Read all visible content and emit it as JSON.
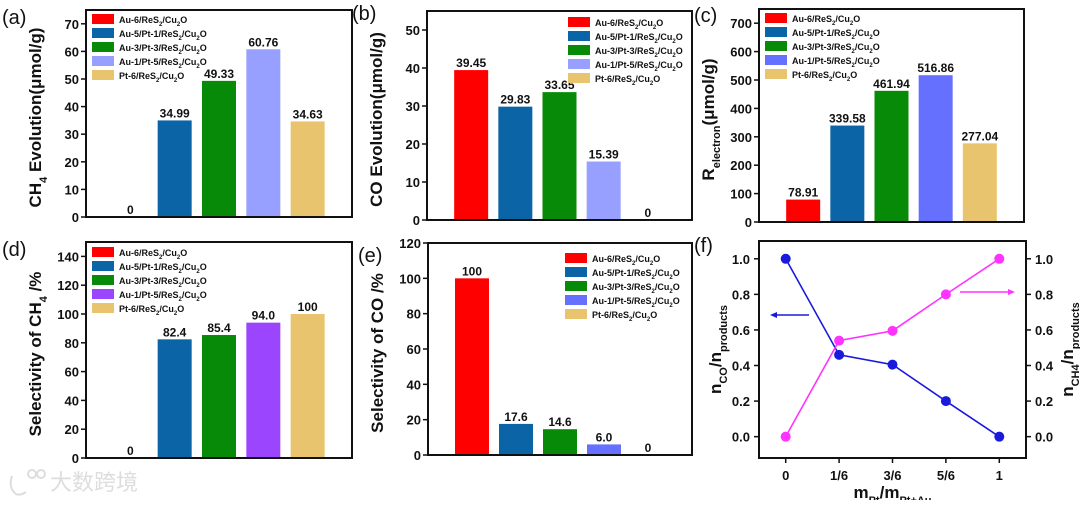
{
  "legend_labels": [
    "Au-6/ReS_{2}/Cu_{2}O",
    "Au-5/Pt-1/ReS_{2}/Cu_{2}O",
    "Au-3/Pt-3/ReS_{2}/Cu_{2}O",
    "Au-1/Pt-5/ReS_{2}/Cu_{2}O",
    "Pt-6/ReS_{2}/Cu_{2}O"
  ],
  "watermark": "大数跨境",
  "chart_data": [
    {
      "id": "a",
      "panel_label": "(a)",
      "type": "bar",
      "ylabel": "CH_{4} Evolution(μmol/g)",
      "ylim": [
        0,
        75
      ],
      "yticks": [
        0,
        10,
        20,
        30,
        40,
        50,
        60,
        70
      ],
      "values": [
        0,
        34.99,
        49.33,
        60.76,
        34.63
      ],
      "value_labels": [
        "0",
        "34.99",
        "49.33",
        "60.76",
        "34.63"
      ],
      "colors": [
        "#ff0000",
        "#0a64a6",
        "#078a07",
        "#98a0ff",
        "#e9c46e"
      ],
      "legend": "top-left"
    },
    {
      "id": "b",
      "panel_label": "(b)",
      "type": "bar",
      "ylabel": "CO Evolution(μmol/g)",
      "ylim": [
        0,
        55
      ],
      "yticks": [
        0,
        10,
        20,
        30,
        40,
        50
      ],
      "values": [
        39.45,
        29.83,
        33.65,
        15.39,
        0
      ],
      "value_labels": [
        "39.45",
        "29.83",
        "33.65",
        "15.39",
        "0"
      ],
      "colors": [
        "#ff0000",
        "#0a64a6",
        "#078a07",
        "#98a0ff",
        "#e9c46e"
      ],
      "legend": "top-right"
    },
    {
      "id": "c",
      "panel_label": "(c)",
      "type": "bar",
      "ylabel": "R_{electron}(μmol/g)",
      "ylim": [
        0,
        750
      ],
      "yticks": [
        0,
        100,
        200,
        300,
        400,
        500,
        600,
        700
      ],
      "values": [
        78.91,
        339.58,
        461.94,
        516.86,
        277.04
      ],
      "value_labels": [
        "78.91",
        "339.58",
        "461.94",
        "516.86",
        "277.04"
      ],
      "colors": [
        "#ff0000",
        "#0a64a6",
        "#078a07",
        "#6670ff",
        "#e9c46e"
      ],
      "legend": "top-left"
    },
    {
      "id": "d",
      "panel_label": "(d)",
      "type": "bar",
      "ylabel": "Selectivity of CH_{4} /%",
      "ylim": [
        0,
        150
      ],
      "yticks": [
        0,
        20,
        40,
        60,
        80,
        100,
        120,
        140
      ],
      "values": [
        0,
        82.4,
        85.4,
        94.0,
        100
      ],
      "value_labels": [
        "0",
        "82.4",
        "85.4",
        "94.0",
        "100"
      ],
      "colors": [
        "#ff0000",
        "#0a64a6",
        "#078a07",
        "#9b45ff",
        "#e9c46e"
      ],
      "legend": "top-left"
    },
    {
      "id": "e",
      "panel_label": "(e)",
      "type": "bar",
      "ylabel": "Selectivity of CO /%",
      "ylim": [
        0,
        120
      ],
      "yticks": [
        0,
        20,
        40,
        60,
        80,
        100,
        120
      ],
      "values": [
        100,
        17.6,
        14.6,
        6.0,
        0
      ],
      "value_labels": [
        "100",
        "17.6",
        "14.6",
        "6.0",
        "0"
      ],
      "colors": [
        "#ff0000",
        "#0a64a6",
        "#078a07",
        "#6670ff",
        "#e9c46e"
      ],
      "legend": "top-right"
    },
    {
      "id": "f",
      "panel_label": "(f)",
      "type": "line",
      "xlabel": "m_{Pt}/m_{Pt+Au}",
      "x": [
        "0",
        "1/6",
        "3/6",
        "5/6",
        "1"
      ],
      "ylim": [
        -0.12,
        1.1
      ],
      "yticks": [
        "0.0",
        "0.2",
        "0.4",
        "0.6",
        "0.8",
        "1.0"
      ],
      "ylabel_left": "n_{CO}/n_{products}",
      "ylabel_right": "n_{CH4}/n_{products}",
      "series": [
        {
          "name": "n_CO/n_products",
          "axis": "left",
          "color": "#1a1adc",
          "values": [
            1.0,
            0.46,
            0.405,
            0.2,
            0.0
          ]
        },
        {
          "name": "n_CH4/n_products",
          "axis": "right",
          "color": "#ff33ff",
          "values": [
            0.0,
            0.54,
            0.595,
            0.8,
            1.0
          ]
        }
      ]
    }
  ]
}
